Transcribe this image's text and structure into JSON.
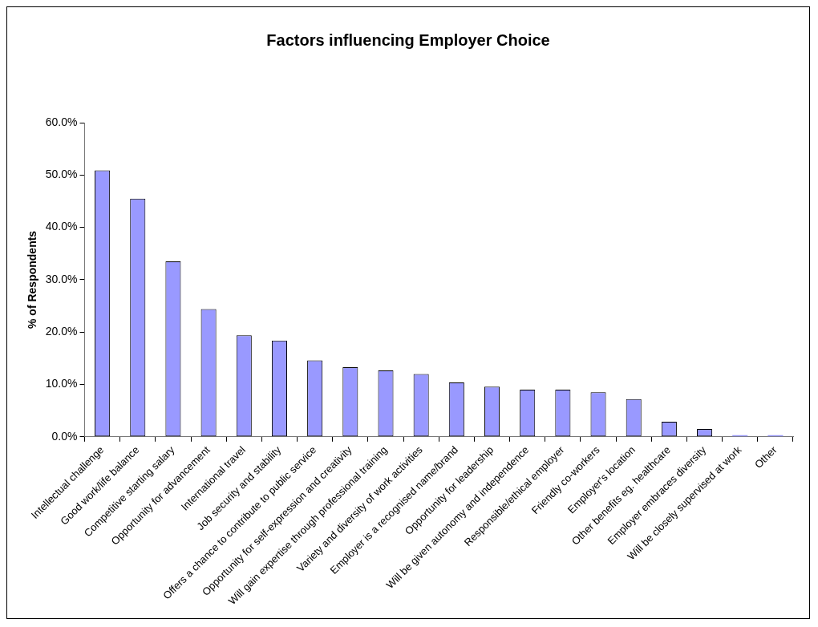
{
  "chart_data": {
    "type": "bar",
    "title": "Factors influencing Employer Choice",
    "ylabel": "% of Respondents",
    "categories": [
      "Intellectual challenge",
      "Good work/life balance",
      "Competitive starting salary",
      "Opportunity for advancement",
      "International travel",
      "Job security and stability",
      "Offers a chance to contribute to public service",
      "Opportunity for self-expression and creativity",
      "Will gain expertise through professional training",
      "Variety and diversity of work activities",
      "Employer is a recognised name/brand",
      "Opportunity for leadership",
      "Will be given autonomy and independence",
      "Responsible/ethical employer",
      "Friendly co-workers",
      "Employer's location",
      "Other benefits eg. healthcare",
      "Employer embraces diversity",
      "Will be closely supervised at work",
      "Other"
    ],
    "values": [
      50.9,
      45.5,
      33.5,
      24.4,
      19.4,
      18.4,
      14.6,
      13.3,
      12.7,
      12.0,
      10.4,
      9.6,
      9.0,
      9.0,
      8.5,
      7.2,
      2.9,
      1.5,
      0.3,
      0.3
    ],
    "color": "#9999ff",
    "ylim": [
      0,
      60
    ],
    "yticks": [
      {
        "value": 0,
        "label": "0.0%"
      },
      {
        "value": 10,
        "label": "10.0%"
      },
      {
        "value": 20,
        "label": "20.0%"
      },
      {
        "value": 30,
        "label": "30.0%"
      },
      {
        "value": 40,
        "label": "40.0%"
      },
      {
        "value": 50,
        "label": "50.0%"
      },
      {
        "value": 60,
        "label": "60.0%"
      }
    ],
    "grid": false,
    "legend": false
  }
}
